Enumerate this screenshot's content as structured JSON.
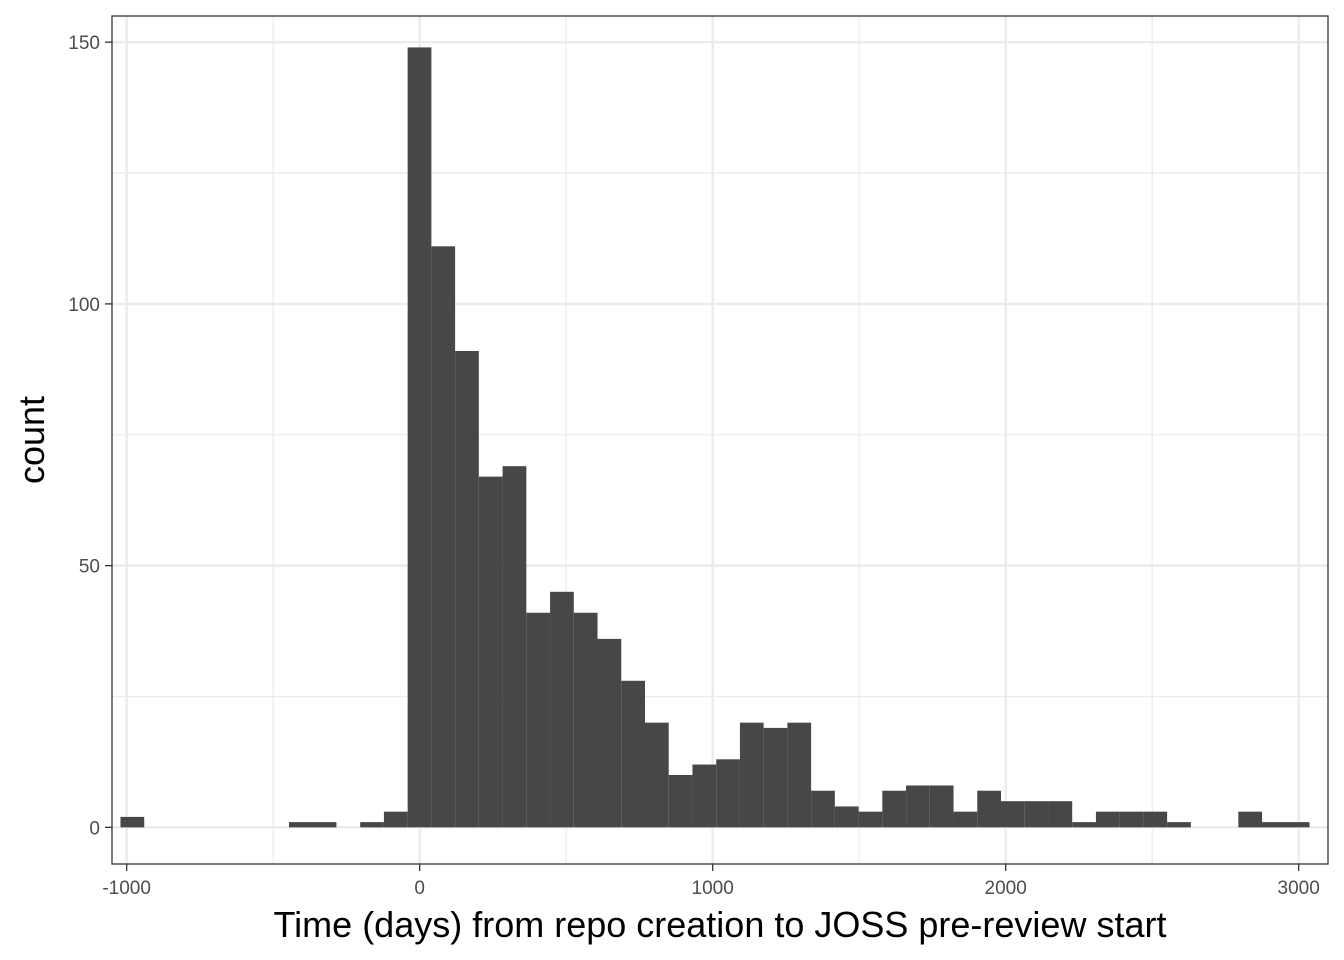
{
  "chart_data": {
    "type": "histogram",
    "title": "",
    "xlabel": "Time (days) from repo creation to JOSS pre-review start",
    "ylabel": "count",
    "xlim": [
      -1050,
      3100
    ],
    "ylim": [
      -7,
      155
    ],
    "x_ticks": [
      -1000,
      0,
      1000,
      2000,
      3000
    ],
    "x_tick_labels": [
      "-1000",
      "0",
      "1000",
      "2000",
      "3000"
    ],
    "y_ticks": [
      0,
      50,
      100,
      150
    ],
    "y_tick_labels": [
      "0",
      "50",
      "100",
      "150"
    ],
    "x_minor_ticks": [
      -500,
      500,
      1500,
      2500
    ],
    "y_minor_ticks": [
      25,
      75,
      125
    ],
    "grid": true,
    "bar_color": "#474747",
    "bins": [
      {
        "x0": -1021,
        "x1": -940,
        "count": 2
      },
      {
        "x0": -446,
        "x1": -284,
        "count": 1
      },
      {
        "x0": -203,
        "x1": -122,
        "count": 1
      },
      {
        "x0": -122,
        "x1": -41,
        "count": 3
      },
      {
        "x0": -41,
        "x1": 40,
        "count": 149
      },
      {
        "x0": 40,
        "x1": 121,
        "count": 111
      },
      {
        "x0": 121,
        "x1": 202,
        "count": 91
      },
      {
        "x0": 202,
        "x1": 283,
        "count": 67
      },
      {
        "x0": 283,
        "x1": 364,
        "count": 69
      },
      {
        "x0": 364,
        "x1": 445,
        "count": 41
      },
      {
        "x0": 445,
        "x1": 526,
        "count": 45
      },
      {
        "x0": 526,
        "x1": 607,
        "count": 41
      },
      {
        "x0": 607,
        "x1": 688,
        "count": 36
      },
      {
        "x0": 688,
        "x1": 769,
        "count": 28
      },
      {
        "x0": 769,
        "x1": 850,
        "count": 20
      },
      {
        "x0": 850,
        "x1": 931,
        "count": 10
      },
      {
        "x0": 931,
        "x1": 1012,
        "count": 12
      },
      {
        "x0": 1012,
        "x1": 1093,
        "count": 13
      },
      {
        "x0": 1093,
        "x1": 1174,
        "count": 20
      },
      {
        "x0": 1174,
        "x1": 1255,
        "count": 19
      },
      {
        "x0": 1255,
        "x1": 1336,
        "count": 20
      },
      {
        "x0": 1336,
        "x1": 1417,
        "count": 7
      },
      {
        "x0": 1417,
        "x1": 1498,
        "count": 4
      },
      {
        "x0": 1498,
        "x1": 1579,
        "count": 3
      },
      {
        "x0": 1579,
        "x1": 1660,
        "count": 7
      },
      {
        "x0": 1660,
        "x1": 1741,
        "count": 8
      },
      {
        "x0": 1741,
        "x1": 1822,
        "count": 8
      },
      {
        "x0": 1822,
        "x1": 1903,
        "count": 3
      },
      {
        "x0": 1903,
        "x1": 1984,
        "count": 7
      },
      {
        "x0": 1984,
        "x1": 2065,
        "count": 5
      },
      {
        "x0": 2065,
        "x1": 2146,
        "count": 5
      },
      {
        "x0": 2146,
        "x1": 2227,
        "count": 5
      },
      {
        "x0": 2227,
        "x1": 2308,
        "count": 1
      },
      {
        "x0": 2308,
        "x1": 2389,
        "count": 3
      },
      {
        "x0": 2389,
        "x1": 2470,
        "count": 3
      },
      {
        "x0": 2470,
        "x1": 2551,
        "count": 3
      },
      {
        "x0": 2551,
        "x1": 2632,
        "count": 1
      },
      {
        "x0": 2794,
        "x1": 2875,
        "count": 3
      },
      {
        "x0": 2875,
        "x1": 3037,
        "count": 1
      }
    ]
  }
}
